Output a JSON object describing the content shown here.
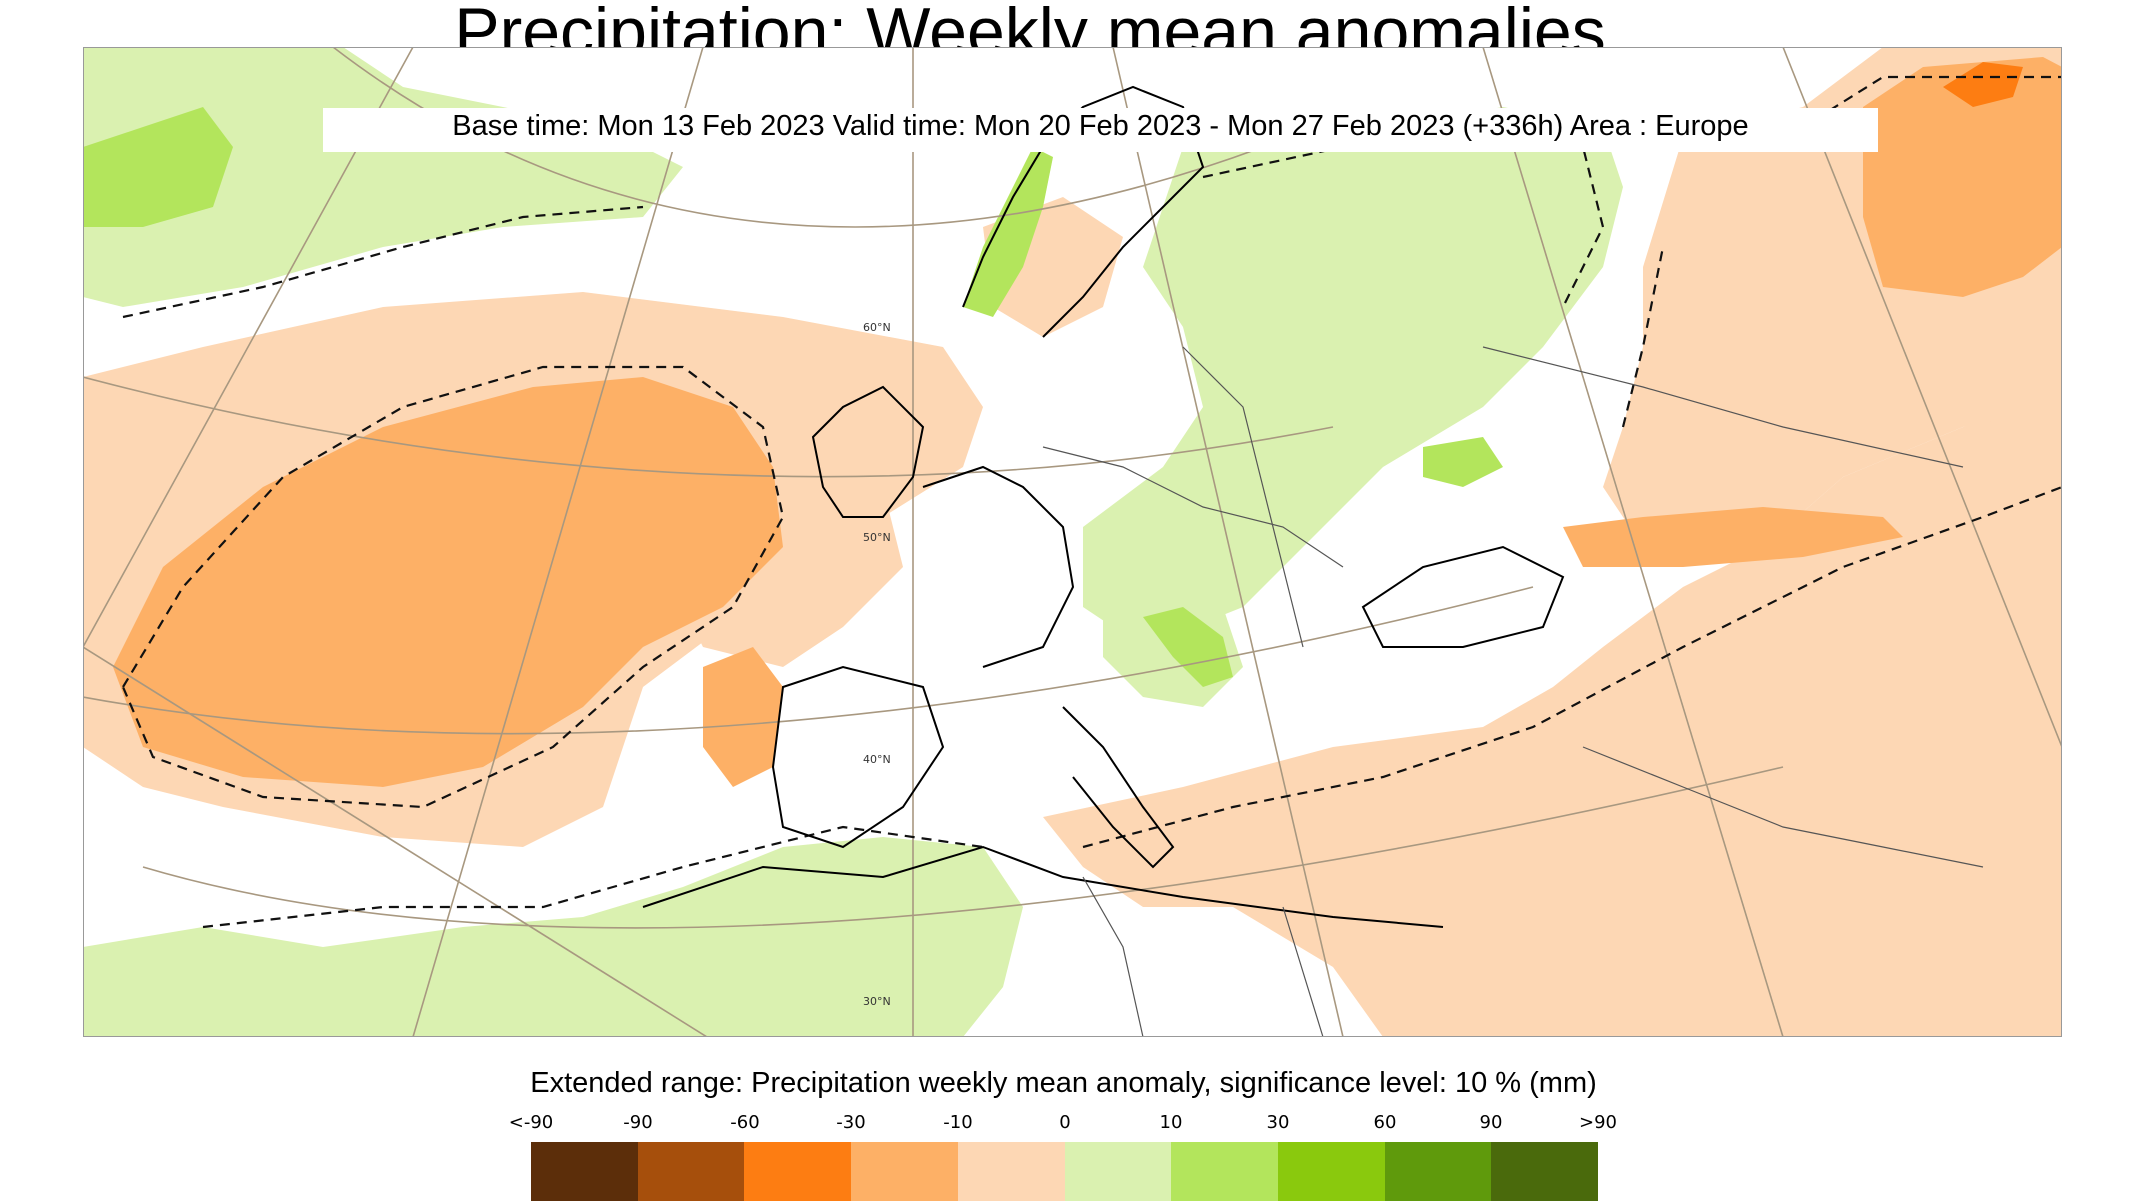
{
  "header": {
    "title": "Precipitation: Weekly mean anomalies",
    "subtitle": "Base time: Mon 13 Feb 2023 Valid time: Mon 20 Feb 2023 - Mon 27 Feb 2023 (+336h) Area : Europe"
  },
  "map": {
    "area": "Europe",
    "projection": "conic",
    "parallel_labels": [
      "60°N",
      "50°N",
      "40°N",
      "30°N"
    ],
    "significance_contour": "dashed",
    "regions": [
      {
        "name": "north-atlantic-dry",
        "category": "-60"
      },
      {
        "name": "western-europe-dry",
        "category": "-30"
      },
      {
        "name": "mediterranean-dry",
        "category": "-10"
      },
      {
        "name": "russia-dry",
        "category": "-10"
      },
      {
        "name": "scandinavia-wet",
        "category": "30"
      },
      {
        "name": "eastern-europe-wet",
        "category": "10"
      },
      {
        "name": "north-africa-wet",
        "category": "10"
      }
    ]
  },
  "legend": {
    "title": "Extended range: Precipitation weekly mean anomaly, significance level: 10 % (mm)",
    "tick_labels": [
      "<-90",
      "-90",
      "-60",
      "-30",
      "-10",
      "0",
      "10",
      "30",
      "60",
      "90",
      ">90"
    ],
    "colors": [
      "#5c2e0a",
      "#a64f0c",
      "#fd7d12",
      "#fdb066",
      "#fdd7b4",
      "#daf1b0",
      "#b3e55c",
      "#8ac90d",
      "#5f9a0c",
      "#4a6a0c"
    ]
  },
  "palette": {
    "very_dry": "#fd7d12",
    "dry": "#fdb066",
    "slightly_dry": "#fdd7b4",
    "slightly_wet": "#daf1b0",
    "wet": "#b3e55c",
    "very_wet": "#8ac90d"
  }
}
